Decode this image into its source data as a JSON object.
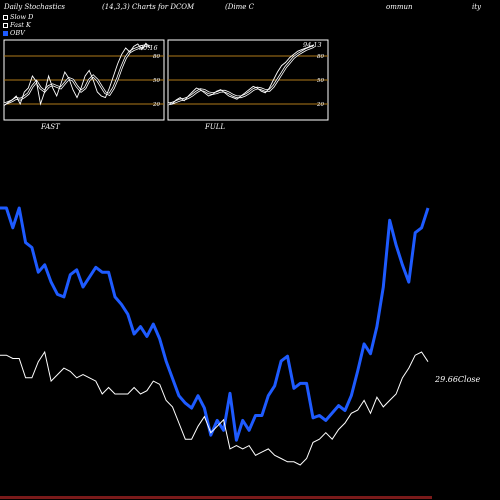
{
  "header": {
    "title": "Daily Stochastics",
    "params": "(14,3,3) Charts for DCOM",
    "company_a": "(Dime C",
    "company_b": "ommun",
    "company_c": "ity"
  },
  "legend": [
    {
      "label": "Slow D",
      "color": "#ffffff",
      "style": "outline"
    },
    {
      "label": "Fast K",
      "color": "#ffffff",
      "style": "outline"
    },
    {
      "label": "OBV",
      "color": "#1e5bff",
      "style": "filled"
    }
  ],
  "colors": {
    "background": "#000000",
    "panel_border": "#ffffff",
    "level_line": "#b07a1a",
    "obv": "#1e5bff",
    "close": "#ffffff",
    "bottom_bar": "#7a1a1a"
  },
  "chart_data": [
    {
      "type": "line",
      "panel": "FAST",
      "title": "FAST",
      "ylim": [
        0,
        100
      ],
      "levels": [
        20,
        50,
        80
      ],
      "level_labels": [
        "80",
        "50",
        "20"
      ],
      "last_value_label": "90.16",
      "series": [
        {
          "name": "Fast K",
          "values": [
            18,
            22,
            25,
            30,
            20,
            35,
            40,
            55,
            48,
            20,
            35,
            55,
            40,
            30,
            45,
            60,
            52,
            38,
            28,
            40,
            55,
            62,
            50,
            35,
            30,
            28,
            40,
            55,
            70,
            82,
            90,
            85,
            92,
            95,
            88,
            96,
            90
          ]
        },
        {
          "name": "Slow D",
          "values": [
            20,
            22,
            24,
            27,
            26,
            29,
            33,
            42,
            48,
            40,
            36,
            42,
            44,
            42,
            40,
            46,
            52,
            50,
            42,
            36,
            40,
            50,
            55,
            50,
            42,
            34,
            32,
            40,
            52,
            66,
            78,
            85,
            88,
            90,
            92,
            93,
            92
          ]
        }
      ]
    },
    {
      "type": "line",
      "panel": "FULL",
      "title": "FULL",
      "ylim": [
        0,
        100
      ],
      "levels": [
        20,
        50,
        80
      ],
      "level_labels": [
        "80",
        "50",
        "20"
      ],
      "last_value_label": "94.13",
      "series": [
        {
          "name": "Fast K",
          "values": [
            22,
            20,
            25,
            28,
            24,
            30,
            35,
            40,
            38,
            34,
            30,
            32,
            36,
            38,
            34,
            30,
            28,
            26,
            30,
            34,
            38,
            42,
            40,
            36,
            34,
            40,
            50,
            60,
            68,
            72,
            78,
            82,
            86,
            88,
            90,
            92,
            94
          ]
        },
        {
          "name": "Slow D",
          "values": [
            20,
            21,
            23,
            25,
            26,
            28,
            31,
            35,
            38,
            37,
            34,
            33,
            34,
            36,
            36,
            34,
            31,
            29,
            29,
            31,
            34,
            38,
            40,
            39,
            37,
            37,
            42,
            50,
            58,
            66,
            72,
            78,
            82,
            85,
            88,
            90,
            92
          ]
        }
      ]
    },
    {
      "type": "line",
      "panel": "price",
      "close_label": "29.66Close",
      "series": [
        {
          "name": "OBV",
          "values": [
            100,
            100,
            92,
            100,
            86,
            84,
            74,
            77,
            70,
            65,
            64,
            73,
            75,
            68,
            72,
            76,
            74,
            74,
            64,
            61,
            57,
            49,
            52,
            48,
            53,
            47,
            38,
            31,
            24,
            21,
            19,
            24,
            19,
            8,
            14,
            10,
            25,
            6,
            14,
            10,
            16,
            16,
            24,
            28,
            38,
            40,
            27,
            29,
            29,
            15,
            16,
            14,
            17,
            20,
            18,
            24,
            34,
            45,
            41,
            52,
            68,
            95,
            85,
            77,
            70,
            90,
            92,
            100
          ]
        },
        {
          "name": "Close",
          "values": [
            34,
            34,
            33,
            33,
            27,
            27,
            32,
            35,
            26,
            28,
            30,
            29,
            27,
            28,
            27,
            26,
            22,
            24,
            22,
            22,
            22,
            24,
            22,
            23,
            26,
            25,
            20,
            18,
            13,
            8,
            8,
            12,
            15,
            10,
            12,
            14,
            5,
            6,
            5,
            6,
            3,
            4,
            5,
            3,
            2,
            1,
            1,
            0,
            2,
            7,
            8,
            10,
            8,
            11,
            13,
            16,
            17,
            20,
            16,
            21,
            18,
            20,
            22,
            27,
            30,
            34,
            35,
            32
          ]
        }
      ]
    }
  ]
}
